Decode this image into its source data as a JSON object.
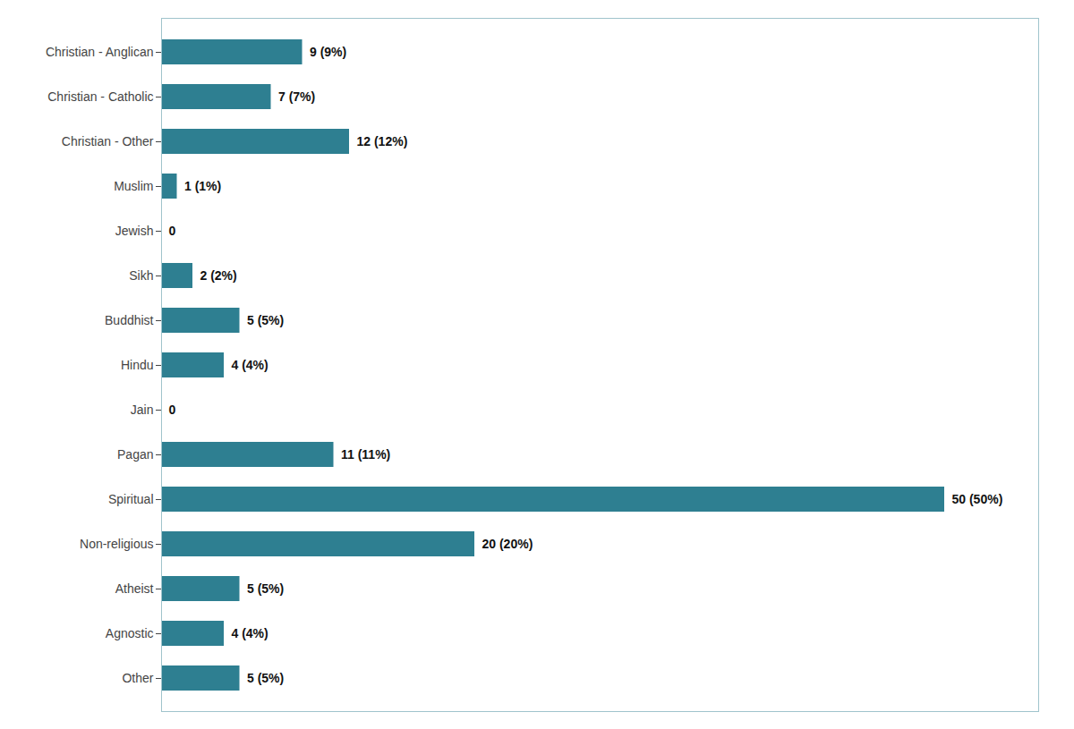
{
  "chart_data": {
    "type": "bar",
    "orientation": "horizontal",
    "categories": [
      "Christian - Anglican",
      "Christian - Catholic",
      "Christian - Other",
      "Muslim",
      "Jewish",
      "Sikh",
      "Buddhist",
      "Hindu",
      "Jain",
      "Pagan",
      "Spiritual",
      "Non-religious",
      "Atheist",
      "Agnostic",
      "Other"
    ],
    "values": [
      9,
      7,
      12,
      1,
      0,
      2,
      5,
      4,
      0,
      11,
      50,
      20,
      5,
      4,
      5
    ],
    "value_labels": [
      "9 (9%)",
      "7 (7%)",
      "12 (12%)",
      "1 (1%)",
      "0",
      "2 (2%)",
      "5 (5%)",
      "4 (4%)",
      "0",
      "11 (11%)",
      "50 (50%)",
      "20 (20%)",
      "5 (5%)",
      "4 (4%)",
      "5 (5%)"
    ],
    "color": "#2e7f91",
    "xlim": [
      0,
      56
    ],
    "data_labels": true,
    "tick_labels": "y",
    "grid": false
  }
}
